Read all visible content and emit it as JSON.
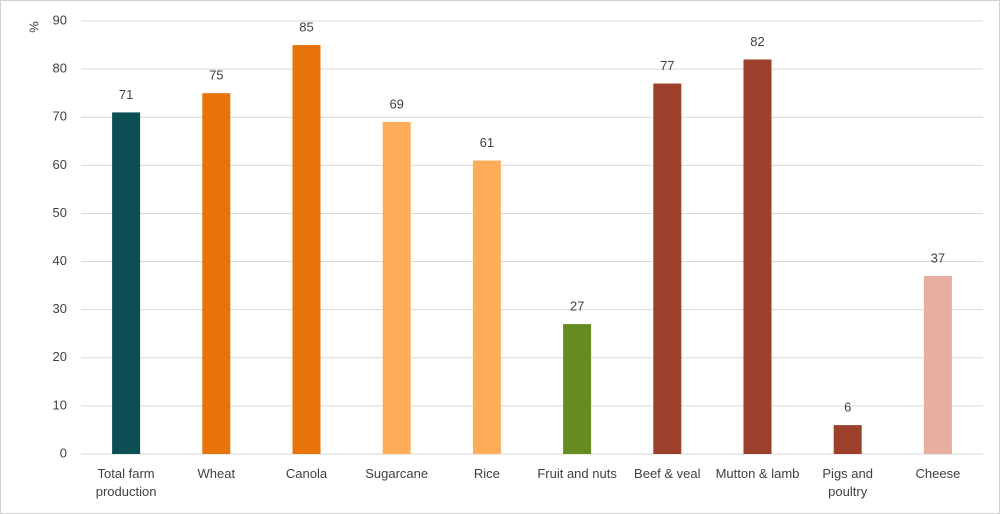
{
  "chart_data": {
    "type": "bar",
    "ylabel": "%",
    "categories": [
      "Total farm production",
      "Wheat",
      "Canola",
      "Sugarcane",
      "Rice",
      "Fruit and nuts",
      "Beef & veal",
      "Mutton & lamb",
      "Pigs and poultry",
      "Cheese"
    ],
    "values": [
      71,
      75,
      85,
      69,
      61,
      27,
      77,
      82,
      6,
      37
    ],
    "colors": [
      "#0b4f55",
      "#e8730a",
      "#e8730a",
      "#ffad5a",
      "#ffad5a",
      "#648c1e",
      "#9c3f2b",
      "#9c3f2b",
      "#9c3f2b",
      "#e7afa0"
    ],
    "ylim": [
      0,
      90
    ],
    "yticks": [
      0,
      10,
      20,
      30,
      40,
      50,
      60,
      70,
      80,
      90
    ],
    "grid": true
  }
}
